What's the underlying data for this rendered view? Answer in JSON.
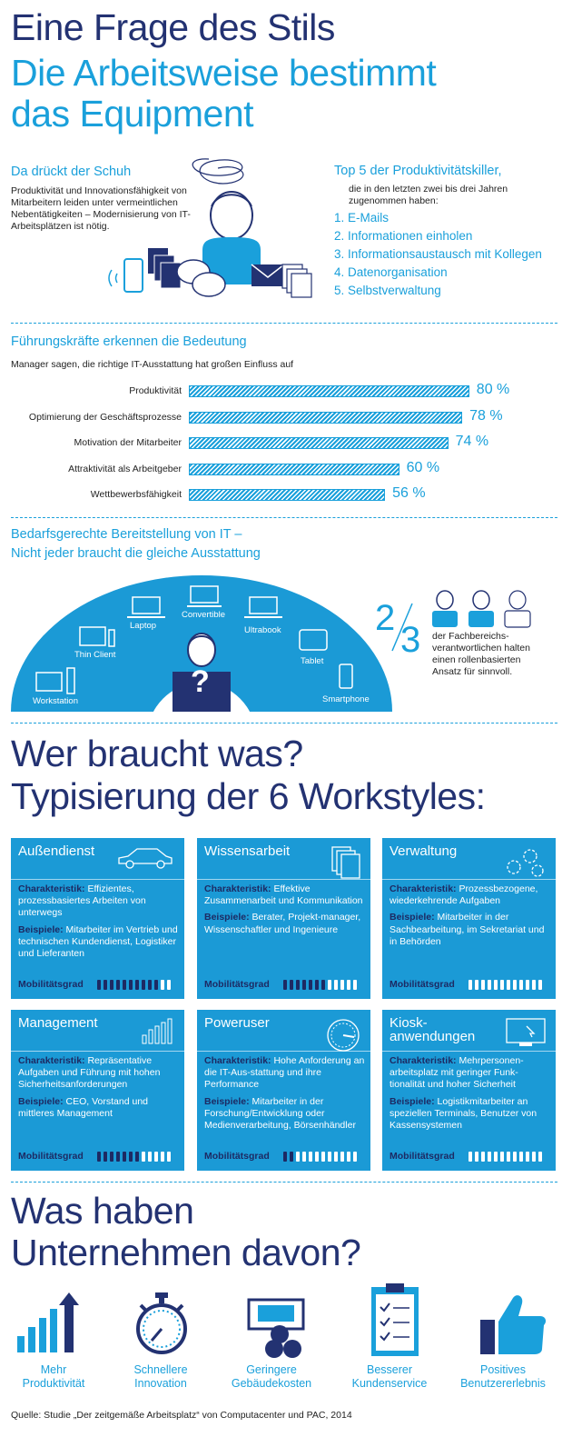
{
  "header": {
    "line1": "Eine Frage des Stils",
    "line2": "Die Arbeitsweise bestimmt",
    "line3": "das Equipment"
  },
  "schuh": {
    "title": "Da drückt der Schuh",
    "text": "Produktivität und Innovationsfähigkeit von Mitarbeitern leiden unter vermeintlichen Nebentätigkeiten – Modernisierung von IT-Arbeitsplätzen ist nötig."
  },
  "killers": {
    "title": "Top 5 der Produktivitätskiller,",
    "subtitle": "die in den letzten zwei bis drei Jahren zugenommen haben:",
    "items": [
      "1. E-Mails",
      "2. Informationen einholen",
      "3. Informationsaustausch mit Kollegen",
      "4. Datenorganisation",
      "5. Selbstverwaltung"
    ]
  },
  "chart_data": {
    "type": "bar",
    "title": "Führungskräfte erkennen die Bedeutung",
    "subtitle": "Manager sagen, die richtige IT-Ausstattung hat großen Einfluss auf",
    "categories": [
      "Produktivität",
      "Optimierung der Geschäftsprozesse",
      "Motivation der Mitarbeiter",
      "Attraktivität als Arbeitgeber",
      "Wettbewerbsfähigkeit"
    ],
    "values": [
      80,
      78,
      74,
      60,
      56
    ],
    "value_labels": [
      "80 %",
      "78 %",
      "74 %",
      "60 %",
      "56 %"
    ],
    "unit": "%",
    "orientation": "horizontal",
    "xlim": [
      0,
      100
    ],
    "color": "#1aa0db"
  },
  "provision": {
    "title1": "Bedarfsgerechte Bereitstellung von IT –",
    "title2": "Nicht jeder braucht die gleiche Ausstattung",
    "devices": [
      "Workstation",
      "Thin Client",
      "Laptop",
      "Convertible",
      "Ultrabook",
      "Tablet",
      "Smartphone"
    ],
    "question": "?",
    "fraction_num": "2",
    "fraction_den": "3",
    "fraction_text": "der Fachbereichs-verantwortlichen halten einen rollenbasierten Ansatz für sinnvoll."
  },
  "workstyles": {
    "title1": "Wer braucht was?",
    "title2": "Typisierung der 6 Workstyles:",
    "char_label": "Charakteristik:",
    "ex_label": "Beispiele:",
    "mob_label": "Mobilitätsgrad",
    "cards": [
      {
        "title": "Außendienst",
        "char": "Effizientes, prozessbasiertes Arbeiten von unterwegs",
        "ex": "Mitarbeiter im Vertrieb und technischen Kundendienst, Logistiker und Lieferanten",
        "mobility": 10,
        "icon": "car-icon"
      },
      {
        "title": "Wissensarbeit",
        "char": "Effektive Zusammenarbeit und Kommunikation",
        "ex": "Berater, Projekt-manager, Wissenschaftler und Ingenieure",
        "mobility": 7,
        "icon": "documents-icon"
      },
      {
        "title": "Verwaltung",
        "char": "Prozessbezogene, wiederkehrende Aufgaben",
        "ex": "Mitarbeiter in der Sachbearbeitung, im Sekretariat und in Behörden",
        "mobility": 0,
        "icon": "gears-icon"
      },
      {
        "title": "Management",
        "char": "Repräsentative Aufgaben und Führung mit hohen Sicherheitsanforderungen",
        "ex": "CEO, Vorstand und mittleres Management",
        "mobility": 7,
        "icon": "bar-chart-icon"
      },
      {
        "title": "Poweruser",
        "char": "Hohe Anforderung an die IT-Aus-stattung und ihre Performance",
        "ex": "Mitarbeiter in der Forschung/Entwicklung oder Medienverarbeitung, Börsenhändler",
        "mobility": 2,
        "icon": "speedometer-icon"
      },
      {
        "title": "Kiosk-anwendungen",
        "char": "Mehrpersonen-arbeitsplatz mit geringer Funk-tionalität und hoher Sicherheit",
        "ex": "Logistikmitarbeiter an speziellen Terminals, Benutzer von Kassensystemen",
        "mobility": 0,
        "icon": "touchscreen-icon"
      }
    ]
  },
  "benefits": {
    "title1": "Was haben",
    "title2": "Unternehmen davon?",
    "items": [
      {
        "line1": "Mehr",
        "line2": "Produktivität",
        "icon": "growth-chart-icon"
      },
      {
        "line1": "Schnellere",
        "line2": "Innovation",
        "icon": "stopwatch-icon"
      },
      {
        "line1": "Geringere",
        "line2": "Gebäudekosten",
        "icon": "office-icon"
      },
      {
        "line1": "Besserer",
        "line2": "Kundenservice",
        "icon": "checklist-icon"
      },
      {
        "line1": "Positives",
        "line2": "Benutzererlebnis",
        "icon": "thumbs-up-icon"
      }
    ]
  },
  "footer": {
    "source": "Quelle: Studie „Der zeitgemäße Arbeitsplatz“ von Computacenter und PAC, 2014"
  }
}
